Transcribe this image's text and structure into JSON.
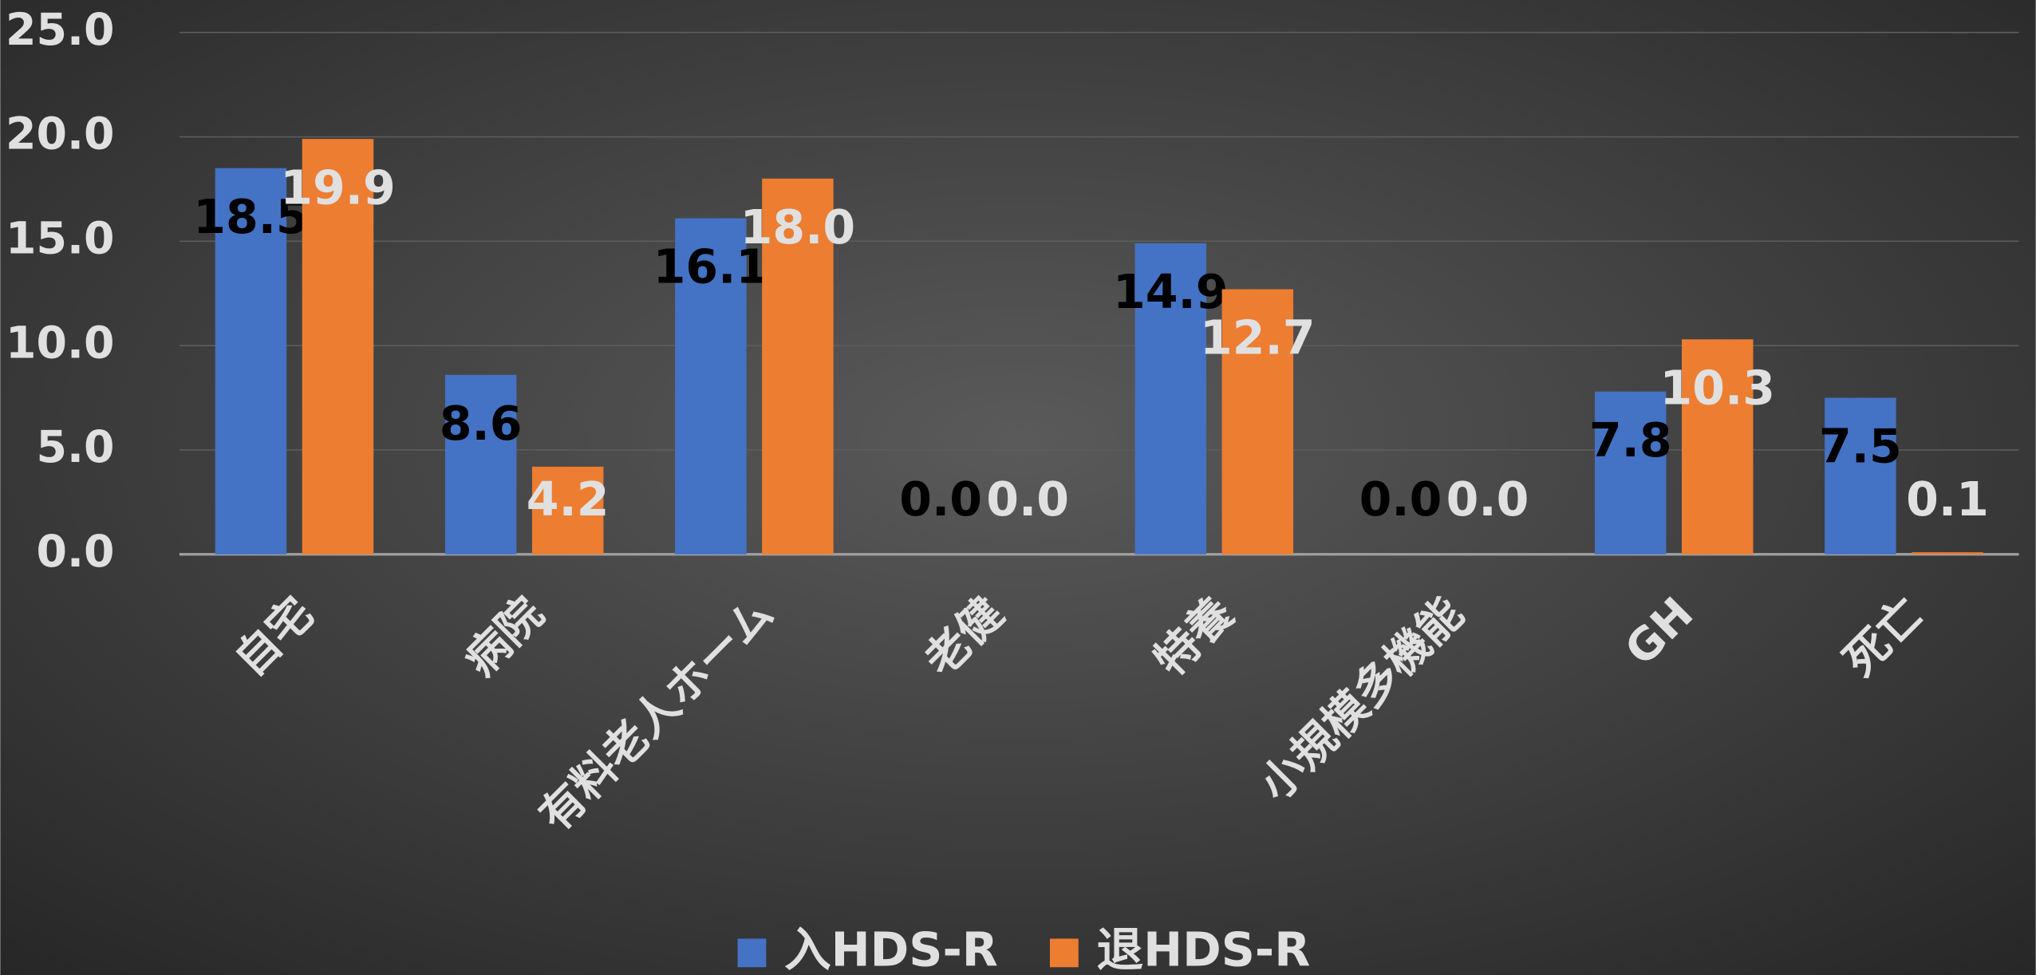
{
  "chart_data": {
    "type": "bar",
    "categories": [
      "自宅",
      "病院",
      "有料老人ホーム",
      "老健",
      "特養",
      "小規模多機能",
      "GH",
      "死亡"
    ],
    "series": [
      {
        "name": "入HDS-R",
        "color": "#4472c4",
        "values": [
          18.5,
          8.6,
          16.1,
          0.0,
          14.9,
          0.0,
          7.8,
          7.5
        ],
        "value_labels": [
          "18.5",
          "8.6",
          "16.1",
          "0.0",
          "14.9",
          "0.0",
          "7.8",
          "7.5"
        ]
      },
      {
        "name": "退HDS-R",
        "color": "#ed7d31",
        "values": [
          19.9,
          4.2,
          18.0,
          0.0,
          12.7,
          0.0,
          10.3,
          0.1
        ],
        "value_labels": [
          "19.9",
          "4.2",
          "18.0",
          "0.0",
          "12.7",
          "0.0",
          "10.3",
          "0.1"
        ]
      }
    ],
    "ylim": [
      0,
      25
    ],
    "yticks": [
      {
        "value": 0,
        "label": "0.0"
      },
      {
        "value": 5,
        "label": "5.0"
      },
      {
        "value": 10,
        "label": "10.0"
      },
      {
        "value": 15,
        "label": "15.0"
      },
      {
        "value": 20,
        "label": "20.0"
      },
      {
        "value": 25,
        "label": "25.0"
      }
    ],
    "grid": true,
    "legend": "bottom"
  }
}
